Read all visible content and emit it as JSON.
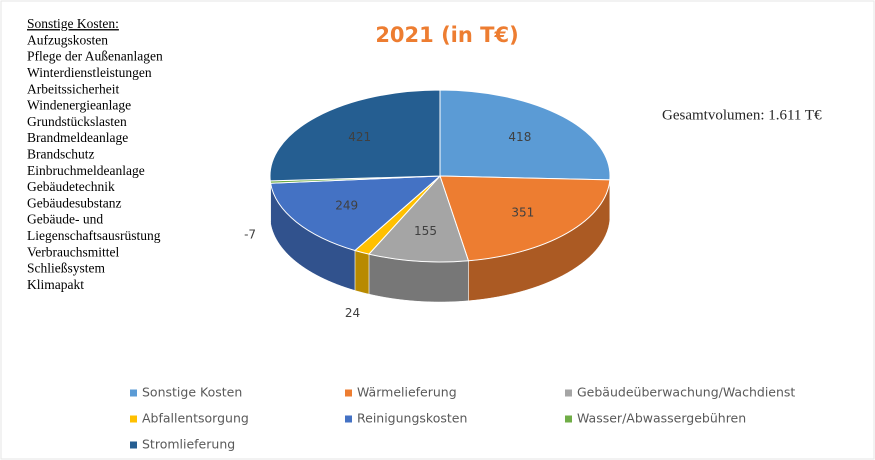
{
  "chart_data": {
    "type": "pie",
    "title": "2021 (in T€)",
    "annotation": "Gesamtvolumen: 1.611 T€",
    "side_note": {
      "heading": "Sonstige Kosten:",
      "lines": [
        "Aufzugskosten",
        "Pflege der Außenanlagen",
        "Winterdienstleistungen",
        "Arbeitssicherheit",
        "Windenergieanlage",
        "Grundstückslasten",
        "Brandmeldeanlage",
        "Brandschutz",
        "Einbruchmeldeanlage",
        "Gebäudetechnik",
        "Gebäudesubstanz",
        "Gebäude- und",
        "Liegenschaftsausrüstung",
        "Verbrauchsmittel",
        "Schließsystem",
        "Klimapakt"
      ]
    },
    "categories": [
      "Sonstige Kosten",
      "Wärmelieferung",
      "Gebäudeüberwachung/Wachdienst",
      "Abfallentsorgung",
      "Reinigungskosten",
      "Wasser/Abwassergebühren",
      "Stromlieferung"
    ],
    "values": [
      418,
      351,
      155,
      24,
      249,
      -7,
      421
    ],
    "colors": [
      "#5b9bd5",
      "#ed7d31",
      "#a5a5a5",
      "#ffc000",
      "#4472c4",
      "#70ad47",
      "#255e91"
    ],
    "legend": "bottom"
  }
}
